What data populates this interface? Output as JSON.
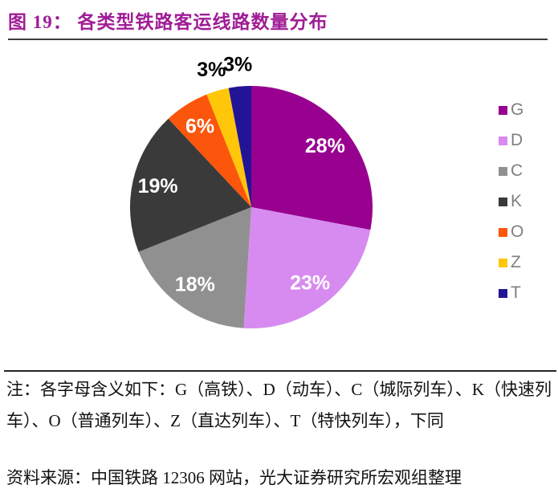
{
  "title": "图 19：  各类型铁路客运线路数量分布",
  "chart_data": {
    "type": "pie",
    "title": "各类型铁路客运线路数量分布",
    "categories": [
      "G",
      "D",
      "C",
      "K",
      "O",
      "Z",
      "T"
    ],
    "values": [
      28,
      23,
      18,
      19,
      6,
      3,
      3
    ],
    "labels": [
      "28%",
      "23%",
      "18%",
      "19%",
      "6%",
      "3%",
      "3%"
    ],
    "unit": "%",
    "colors": [
      "#98008F",
      "#D78BF0",
      "#909090",
      "#3A3A3A",
      "#FB560B",
      "#FFC60A",
      "#221496"
    ],
    "start_angle": "top",
    "direction": "clockwise",
    "legend_position": "right",
    "inside_label_color": "#FFFFFF",
    "outside_label_color": "#000000"
  },
  "note": "注：各字母含义如下：G（高铁）、D（动车）、C（城际列车）、K（快速列车）、O（普通列车）、Z（直达列车）、T（特快列车），下同",
  "source": "资料来源：中国铁路 12306 网站，光大证券研究所宏观组整理",
  "styles": {
    "title_color": "#A01D96",
    "legend_text_color": "#7F7F7F",
    "rule_color": "#2B2B2B"
  }
}
